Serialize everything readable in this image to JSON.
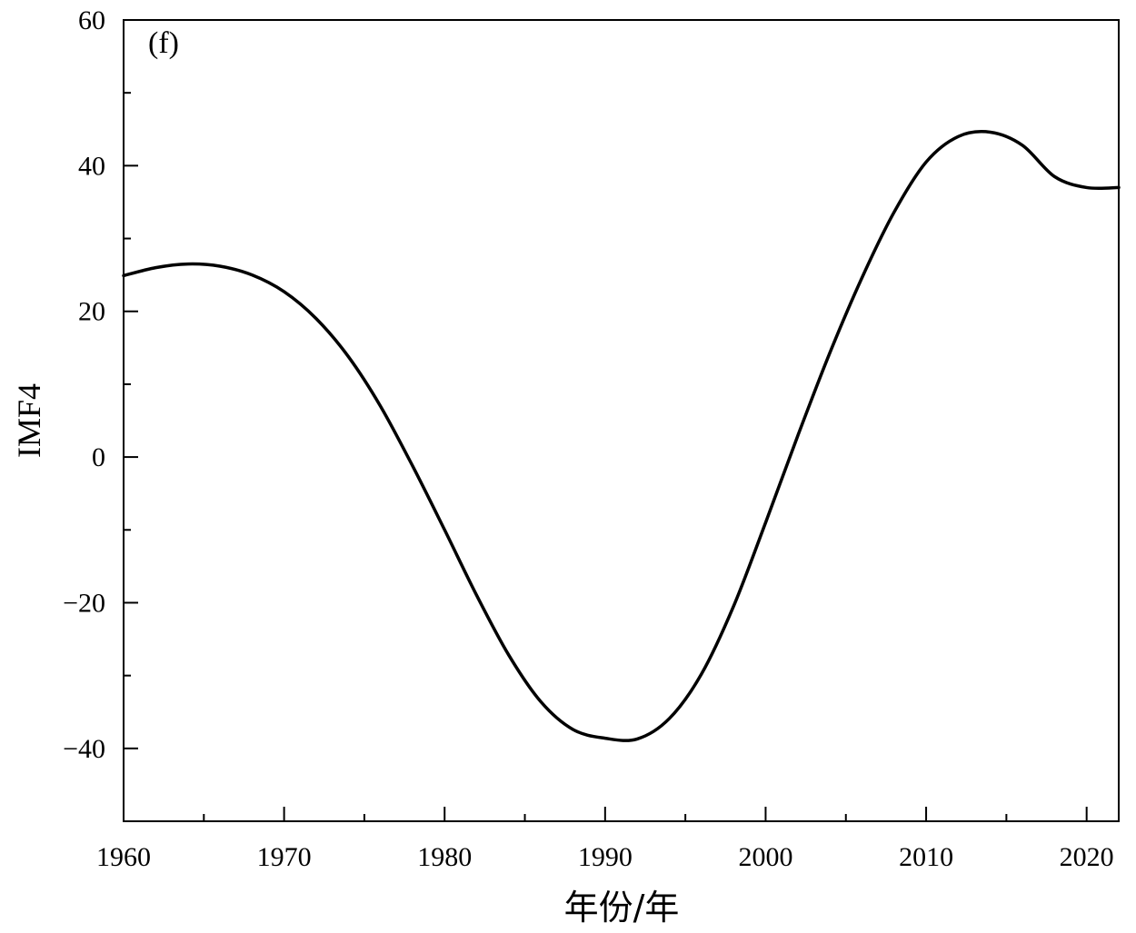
{
  "chart_data": {
    "type": "line",
    "title": "",
    "annotation": "(f)",
    "xlabel": "年份/年",
    "ylabel": "IMF4",
    "xlim": [
      1960,
      2022
    ],
    "ylim": [
      -50,
      60
    ],
    "x_ticks": [
      1960,
      1970,
      1980,
      1990,
      2000,
      2010,
      2020
    ],
    "x_tick_labels": [
      "1960",
      "1970",
      "1980",
      "1990",
      "2000",
      "2010",
      "2020"
    ],
    "x_minor_ticks": [
      1965,
      1975,
      1985,
      1995,
      2005,
      2015
    ],
    "y_ticks": [
      -40,
      -20,
      0,
      20,
      40,
      60
    ],
    "y_tick_labels": [
      "−40",
      "−20",
      "0",
      "20",
      "40",
      "60"
    ],
    "y_minor_ticks": [
      -50,
      -30,
      -10,
      10,
      30,
      50
    ],
    "grid": false,
    "series": [
      {
        "color": "#000000",
        "x": [
          1960,
          1962,
          1964,
          1966,
          1968,
          1970,
          1972,
          1974,
          1976,
          1978,
          1980,
          1982,
          1984,
          1986,
          1988,
          1990,
          1992,
          1994,
          1996,
          1998,
          2000,
          2002,
          2004,
          2006,
          2008,
          2010,
          2012,
          2014,
          2016,
          2018,
          2020,
          2022
        ],
        "y": [
          24.9,
          26.0,
          26.5,
          26.2,
          25.0,
          22.7,
          19.0,
          13.8,
          7.0,
          -1.2,
          -10.0,
          -19.0,
          -27.2,
          -33.6,
          -37.4,
          -38.6,
          -38.7,
          -35.9,
          -29.8,
          -20.5,
          -9.0,
          2.9,
          14.3,
          24.6,
          33.6,
          40.5,
          44.0,
          44.6,
          42.8,
          38.5,
          37.0,
          37.0
        ]
      }
    ]
  }
}
